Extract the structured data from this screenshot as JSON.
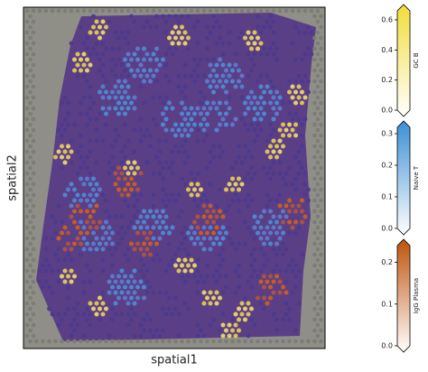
{
  "chart_data": {
    "type": "spatial",
    "xlabel": "spatial1",
    "ylabel": "spatial2",
    "colorbars": [
      {
        "label": "GC B",
        "lim": [
          0,
          0.66
        ],
        "ticks": [
          {
            "value": 0,
            "label": "0.0"
          },
          0.2,
          0.4,
          0.6
        ],
        "colors": [
          "#ffffff",
          "#f2dd3a"
        ]
      },
      {
        "label": "Naive T",
        "lim": [
          0,
          0.32
        ],
        "ticks": [
          {
            "value": 0,
            "label": "0.0"
          },
          0.1,
          0.2,
          0.3
        ],
        "colors": [
          "#ffffff",
          "#3b8fd5"
        ]
      },
      {
        "label": "IgG Plasma",
        "lim": [
          0,
          0.24
        ],
        "ticks": [
          {
            "value": 0,
            "label": "0.0"
          },
          0.1,
          0.2
        ],
        "colors": [
          "#ffffff",
          "#bf520c"
        ]
      }
    ]
  }
}
